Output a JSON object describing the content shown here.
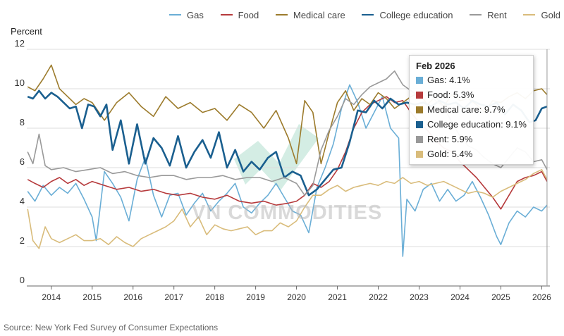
{
  "chart_data": {
    "type": "line",
    "title": "",
    "ylabel": "Percent",
    "xlabel": "",
    "ylim": [
      0,
      12
    ],
    "yticks": [
      0,
      2,
      4,
      6,
      8,
      10,
      12
    ],
    "xticks": [
      2014,
      2015,
      2016,
      2017,
      2018,
      2019,
      2020,
      2021,
      2022,
      2023,
      2024,
      2025,
      2026
    ],
    "xlim": [
      2013.4,
      2026.2
    ],
    "grid": true,
    "legend_position": "top",
    "source": "Source: New York Fed Survey of Consumer Expectations",
    "watermark": "VN COMMODITIES",
    "tooltip": {
      "title": "Feb 2026",
      "entries": [
        {
          "label": "Gas: 4.1%",
          "color": "#6aaed6"
        },
        {
          "label": "Food: 5.3%",
          "color": "#b63a3c"
        },
        {
          "label": "Medical care: 9.7%",
          "color": "#9c7b2c"
        },
        {
          "label": "College education: 9.1%",
          "color": "#1a5f8f"
        },
        {
          "label": "Rent: 5.9%",
          "color": "#999999"
        },
        {
          "label": "Gold: 5.4%",
          "color": "#d9bc7b"
        }
      ]
    },
    "series": [
      {
        "name": "Gas",
        "color": "#6aaed6",
        "x": [
          2013.42,
          2013.6,
          2013.8,
          2014.0,
          2014.2,
          2014.4,
          2014.6,
          2014.8,
          2015.0,
          2015.1,
          2015.3,
          2015.5,
          2015.7,
          2015.9,
          2016.1,
          2016.3,
          2016.5,
          2016.7,
          2016.9,
          2017.1,
          2017.3,
          2017.5,
          2017.7,
          2017.9,
          2018.1,
          2018.3,
          2018.5,
          2018.7,
          2018.9,
          2019.1,
          2019.3,
          2019.5,
          2019.7,
          2019.9,
          2020.1,
          2020.3,
          2020.5,
          2020.7,
          2020.9,
          2021.1,
          2021.3,
          2021.5,
          2021.7,
          2021.9,
          2022.1,
          2022.3,
          2022.5,
          2022.6,
          2022.7,
          2022.9,
          2023.1,
          2023.3,
          2023.5,
          2023.7,
          2023.9,
          2024.1,
          2024.3,
          2024.5,
          2024.7,
          2024.9,
          2025.0,
          2025.2,
          2025.4,
          2025.6,
          2025.8,
          2026.0,
          2026.13
        ],
        "y": [
          4.8,
          4.3,
          5.1,
          4.6,
          5.0,
          4.7,
          5.2,
          4.4,
          3.5,
          2.3,
          5.8,
          5.2,
          4.5,
          3.3,
          5.4,
          6.5,
          4.6,
          3.5,
          4.6,
          4.7,
          3.6,
          4.2,
          4.7,
          3.8,
          4.3,
          4.7,
          5.2,
          4.0,
          3.7,
          4.2,
          4.6,
          5.2,
          4.5,
          3.8,
          3.6,
          2.7,
          5.0,
          6.0,
          7.2,
          9.0,
          10.2,
          9.3,
          8.0,
          8.8,
          9.6,
          8.0,
          7.5,
          1.5,
          4.4,
          3.8,
          4.9,
          5.2,
          4.3,
          4.9,
          4.3,
          4.6,
          5.3,
          4.5,
          3.6,
          2.5,
          2.1,
          3.2,
          3.8,
          3.5,
          4.0,
          3.8,
          4.1
        ]
      },
      {
        "name": "Food",
        "color": "#b63a3c",
        "x": [
          2013.42,
          2013.6,
          2013.8,
          2014.0,
          2014.2,
          2014.4,
          2014.6,
          2014.8,
          2015.0,
          2015.3,
          2015.6,
          2015.9,
          2016.2,
          2016.5,
          2016.8,
          2017.1,
          2017.4,
          2017.7,
          2018.0,
          2018.3,
          2018.6,
          2018.9,
          2019.2,
          2019.5,
          2019.8,
          2020.0,
          2020.2,
          2020.4,
          2020.6,
          2020.8,
          2021.0,
          2021.2,
          2021.4,
          2021.6,
          2021.8,
          2022.0,
          2022.2,
          2022.4,
          2022.6,
          2022.8,
          2023.0,
          2023.2,
          2023.4,
          2023.6,
          2023.8,
          2024.0,
          2024.2,
          2024.4,
          2024.6,
          2024.8,
          2025.0,
          2025.2,
          2025.4,
          2025.6,
          2025.8,
          2026.0,
          2026.13
        ],
        "y": [
          5.4,
          5.2,
          5.0,
          5.3,
          5.5,
          5.2,
          5.4,
          5.1,
          5.3,
          5.1,
          4.9,
          5.0,
          4.8,
          4.9,
          4.7,
          4.6,
          4.7,
          4.5,
          4.4,
          4.6,
          4.3,
          4.2,
          4.3,
          4.1,
          4.2,
          4.3,
          4.6,
          5.2,
          5.0,
          5.3,
          5.9,
          6.8,
          8.0,
          8.8,
          9.2,
          9.4,
          9.6,
          9.3,
          9.4,
          8.8,
          8.3,
          7.9,
          7.4,
          7.0,
          6.8,
          6.3,
          5.9,
          5.5,
          5.0,
          4.5,
          3.9,
          4.6,
          5.3,
          5.5,
          5.6,
          5.8,
          5.3
        ]
      },
      {
        "name": "Medical care",
        "color": "#9c7b2c",
        "x": [
          2013.42,
          2013.6,
          2013.8,
          2014.0,
          2014.2,
          2014.4,
          2014.6,
          2014.8,
          2015.0,
          2015.3,
          2015.6,
          2015.9,
          2016.2,
          2016.5,
          2016.8,
          2017.1,
          2017.4,
          2017.7,
          2018.0,
          2018.3,
          2018.6,
          2018.9,
          2019.2,
          2019.5,
          2019.8,
          2020.0,
          2020.2,
          2020.4,
          2020.6,
          2020.8,
          2021.0,
          2021.2,
          2021.4,
          2021.6,
          2021.8,
          2022.0,
          2022.2,
          2022.4,
          2022.6,
          2022.8,
          2023.0,
          2023.2,
          2023.4,
          2023.6,
          2023.8,
          2024.0,
          2024.2,
          2024.4,
          2024.6,
          2024.8,
          2025.0,
          2025.2,
          2025.4,
          2025.6,
          2025.8,
          2026.0,
          2026.13
        ],
        "y": [
          10.1,
          9.9,
          10.5,
          11.2,
          10.0,
          9.6,
          9.2,
          9.5,
          9.3,
          8.4,
          9.3,
          9.8,
          9.1,
          8.6,
          9.6,
          9.0,
          9.3,
          8.8,
          9.0,
          8.4,
          9.2,
          8.8,
          8.0,
          8.9,
          7.5,
          6.2,
          9.4,
          8.8,
          6.2,
          7.8,
          9.3,
          9.9,
          8.9,
          9.5,
          9.2,
          9.8,
          9.5,
          9.0,
          9.3,
          9.6,
          9.8,
          9.2,
          9.6,
          9.1,
          9.7,
          9.4,
          9.5,
          9.2,
          8.8,
          9.4,
          9.3,
          9.6,
          9.8,
          9.5,
          9.9,
          10.0,
          9.7
        ]
      },
      {
        "name": "College education",
        "color": "#1a5f8f",
        "x": [
          2013.42,
          2013.55,
          2013.7,
          2013.85,
          2014.0,
          2014.15,
          2014.3,
          2014.45,
          2014.6,
          2014.75,
          2014.9,
          2015.05,
          2015.2,
          2015.35,
          2015.5,
          2015.7,
          2015.9,
          2016.1,
          2016.3,
          2016.5,
          2016.7,
          2016.9,
          2017.1,
          2017.3,
          2017.5,
          2017.7,
          2017.9,
          2018.1,
          2018.3,
          2018.5,
          2018.7,
          2018.9,
          2019.1,
          2019.3,
          2019.5,
          2019.7,
          2019.9,
          2020.1,
          2020.3,
          2020.5,
          2020.7,
          2020.9,
          2021.1,
          2021.3,
          2021.5,
          2021.7,
          2021.9,
          2022.1,
          2022.3,
          2022.5,
          2022.7,
          2022.9,
          2023.1,
          2023.3,
          2023.5,
          2023.7,
          2023.9,
          2024.1,
          2024.3,
          2024.5,
          2024.7,
          2024.9,
          2025.1,
          2025.3,
          2025.5,
          2025.7,
          2025.85,
          2026.0,
          2026.13
        ],
        "y": [
          9.6,
          9.5,
          9.9,
          9.5,
          9.8,
          9.6,
          9.3,
          9.0,
          9.1,
          8.0,
          9.2,
          9.1,
          8.6,
          9.2,
          6.9,
          8.4,
          6.2,
          8.2,
          6.2,
          7.5,
          7.0,
          6.1,
          7.6,
          6.0,
          6.8,
          7.4,
          6.5,
          7.8,
          6.0,
          6.9,
          5.8,
          6.3,
          5.9,
          6.5,
          6.8,
          5.5,
          5.8,
          5.6,
          4.6,
          4.9,
          5.4,
          5.9,
          6.0,
          7.3,
          8.9,
          8.8,
          9.4,
          9.0,
          9.5,
          9.2,
          9.3,
          9.2,
          9.3,
          9.1,
          9.4,
          9.2,
          9.3,
          9.0,
          9.4,
          9.2,
          9.1,
          9.3,
          8.7,
          9.2,
          8.9,
          8.3,
          8.4,
          9.0,
          9.1
        ]
      },
      {
        "name": "Rent",
        "color": "#999999",
        "x": [
          2013.42,
          2013.55,
          2013.7,
          2013.85,
          2014.0,
          2014.3,
          2014.6,
          2014.9,
          2015.2,
          2015.5,
          2015.8,
          2016.1,
          2016.4,
          2016.7,
          2017.0,
          2017.3,
          2017.6,
          2017.9,
          2018.2,
          2018.5,
          2018.8,
          2019.1,
          2019.4,
          2019.7,
          2020.0,
          2020.2,
          2020.4,
          2020.6,
          2020.8,
          2021.0,
          2021.2,
          2021.4,
          2021.6,
          2021.8,
          2022.0,
          2022.2,
          2022.4,
          2022.6,
          2022.8,
          2023.0,
          2023.2,
          2023.4,
          2023.6,
          2023.8,
          2024.0,
          2024.2,
          2024.4,
          2024.6,
          2024.8,
          2025.0,
          2025.2,
          2025.4,
          2025.6,
          2025.8,
          2026.0,
          2026.13
        ],
        "y": [
          6.8,
          6.2,
          7.7,
          6.1,
          5.9,
          6.0,
          5.8,
          5.9,
          6.0,
          5.7,
          5.8,
          5.6,
          5.5,
          5.6,
          5.6,
          5.4,
          5.5,
          5.5,
          5.6,
          5.4,
          5.5,
          5.5,
          5.3,
          5.5,
          5.2,
          4.6,
          5.1,
          6.9,
          7.9,
          8.6,
          9.5,
          9.2,
          9.7,
          10.1,
          10.3,
          10.5,
          10.9,
          10.2,
          9.9,
          9.6,
          9.9,
          9.4,
          9.1,
          8.3,
          7.6,
          7.1,
          6.9,
          6.5,
          6.2,
          6.0,
          6.5,
          7.0,
          6.8,
          6.3,
          6.4,
          5.9
        ]
      },
      {
        "name": "Gold",
        "color": "#d9bc7b",
        "x": [
          2013.42,
          2013.55,
          2013.7,
          2013.85,
          2014.0,
          2014.2,
          2014.4,
          2014.6,
          2014.8,
          2015.0,
          2015.2,
          2015.4,
          2015.6,
          2015.8,
          2016.0,
          2016.2,
          2016.4,
          2016.6,
          2016.8,
          2017.0,
          2017.2,
          2017.4,
          2017.6,
          2017.8,
          2018.0,
          2018.2,
          2018.4,
          2018.6,
          2018.8,
          2019.0,
          2019.2,
          2019.4,
          2019.6,
          2019.8,
          2020.0,
          2020.2,
          2020.4,
          2020.6,
          2020.8,
          2021.0,
          2021.2,
          2021.4,
          2021.6,
          2021.8,
          2022.0,
          2022.2,
          2022.4,
          2022.6,
          2022.8,
          2023.0,
          2023.2,
          2023.4,
          2023.6,
          2023.8,
          2024.0,
          2024.2,
          2024.4,
          2024.6,
          2024.8,
          2025.0,
          2025.2,
          2025.4,
          2025.6,
          2025.8,
          2026.0,
          2026.13
        ],
        "y": [
          3.9,
          2.3,
          1.9,
          3.0,
          2.4,
          2.2,
          2.4,
          2.6,
          2.3,
          2.3,
          2.4,
          2.1,
          2.5,
          2.2,
          2.0,
          2.4,
          2.6,
          2.8,
          3.0,
          3.3,
          3.9,
          3.0,
          3.5,
          2.6,
          3.1,
          2.9,
          2.8,
          2.9,
          3.0,
          2.6,
          2.8,
          2.8,
          3.2,
          3.0,
          3.3,
          4.0,
          4.6,
          4.6,
          4.9,
          5.1,
          4.8,
          5.0,
          5.1,
          5.2,
          5.1,
          5.3,
          5.2,
          5.5,
          5.2,
          5.3,
          5.1,
          5.2,
          5.3,
          5.1,
          4.9,
          4.7,
          4.8,
          4.7,
          4.5,
          4.8,
          5.0,
          5.2,
          5.4,
          5.7,
          5.9,
          5.4
        ]
      }
    ]
  }
}
